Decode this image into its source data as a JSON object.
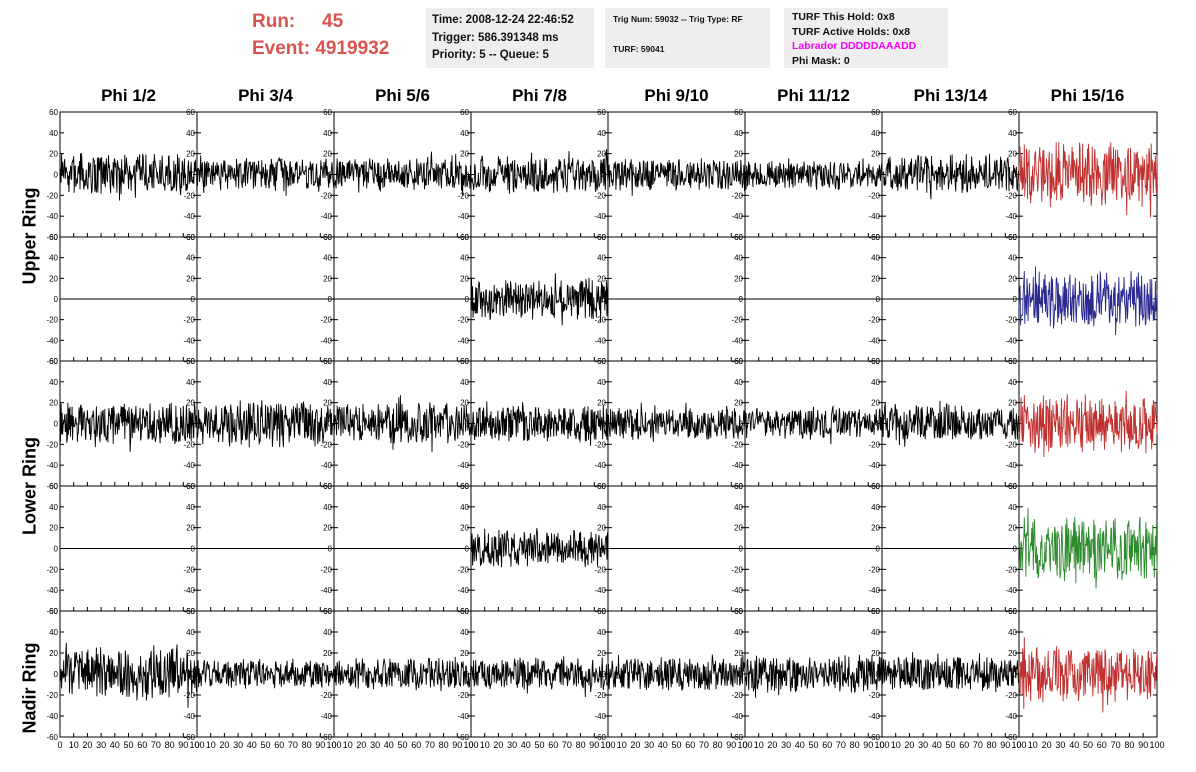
{
  "header": {
    "run_label": "Run:",
    "run_value": "45",
    "event_label": "Event:",
    "event_value": "4919932"
  },
  "info_time": {
    "time": "Time: 2008-12-24 22:46:52",
    "trigger": "Trigger: 586.391348 ms",
    "priority": "Priority: 5 -- Queue: 5"
  },
  "info_trig": {
    "trig": "Trig Num: 59032 -- Trig Type: RF",
    "turf": "TURF: 59041"
  },
  "info_turf": {
    "this_hold": "TURF This Hold: 0x8",
    "active_holds": "TURF Active Holds: 0x8",
    "labrador": "Labrador DDDDDAAADD",
    "phi_mask": "Phi Mask: 0"
  },
  "columns": [
    "Phi 1/2",
    "Phi 3/4",
    "Phi 5/6",
    "Phi 7/8",
    "Phi 9/10",
    "Phi 11/12",
    "Phi 13/14",
    "Phi 15/16"
  ],
  "ring_labels": {
    "upper": "Upper Ring",
    "lower": "Lower Ring",
    "nadir": "Nadir Ring"
  },
  "chart_data": {
    "type": "line",
    "layout": "grid of waveforms, 5 rows x 8 columns",
    "xlim": [
      0,
      100
    ],
    "ylim": [
      -60,
      60
    ],
    "x_ticks": [
      "0",
      "10",
      "20",
      "30",
      "40",
      "50",
      "60",
      "70",
      "80",
      "90",
      "100"
    ],
    "y_ticks": [
      "60",
      "40",
      "20",
      "0",
      "-20",
      "-40",
      "-60"
    ],
    "colors": {
      "trace": "#000000",
      "upper_triggered": "#c0302e",
      "upper_nadir_alt": "#2a2a90",
      "lower_triggered": "#c0302e",
      "lower_alt": "#2e8b2e"
    },
    "rows": [
      {
        "ring": "upper",
        "traces": [
          "active",
          "active",
          "active",
          "active",
          "active",
          "active",
          "active",
          "red"
        ],
        "amplitudes": [
          18,
          14,
          14,
          16,
          14,
          12,
          16,
          28
        ]
      },
      {
        "ring": "upper",
        "traces": [
          "flat",
          "flat",
          "flat",
          "active",
          "flat",
          "flat",
          "flat",
          "blue"
        ],
        "amplitudes": [
          0,
          0,
          0,
          18,
          0,
          0,
          0,
          26
        ]
      },
      {
        "ring": "lower",
        "traces": [
          "active",
          "active",
          "active",
          "active",
          "active",
          "active",
          "active",
          "red"
        ],
        "amplitudes": [
          18,
          20,
          18,
          16,
          14,
          14,
          16,
          26
        ]
      },
      {
        "ring": "lower",
        "traces": [
          "flat",
          "flat",
          "flat",
          "active",
          "flat",
          "flat",
          "flat",
          "green"
        ],
        "amplitudes": [
          0,
          0,
          0,
          16,
          0,
          0,
          0,
          28
        ]
      },
      {
        "ring": "nadir",
        "traces": [
          "active",
          "active",
          "active",
          "active",
          "active",
          "active",
          "active",
          "red"
        ],
        "amplitudes": [
          22,
          12,
          14,
          14,
          14,
          16,
          16,
          24
        ]
      }
    ]
  }
}
